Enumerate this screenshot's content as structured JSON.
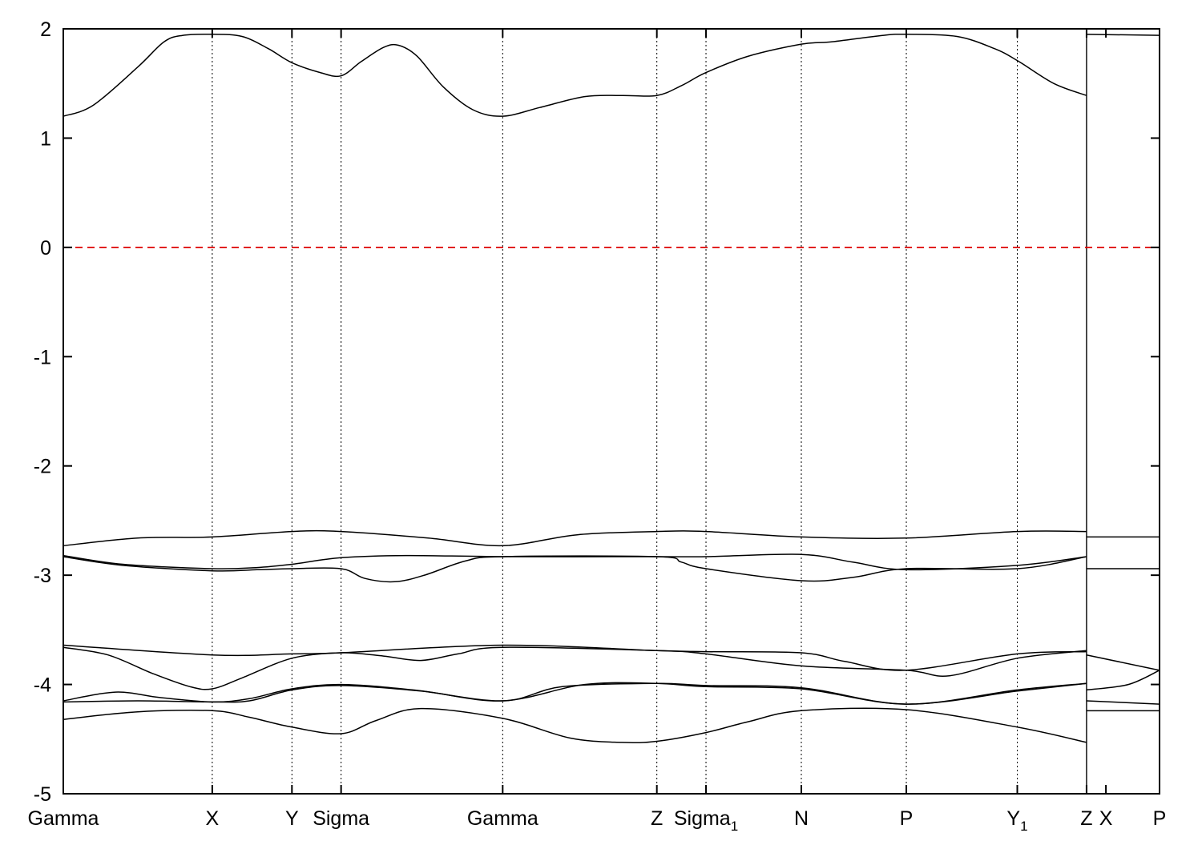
{
  "chart_data": {
    "type": "line",
    "title": "",
    "xlabel": "",
    "ylabel": "",
    "xlim": [
      0,
      14.72
    ],
    "ylim": [
      -5,
      2
    ],
    "yticks": [
      2,
      1,
      0,
      -1,
      -2,
      -3,
      -4,
      -5
    ],
    "ytick_labels": [
      "2",
      "1",
      "0",
      "-1",
      "-2",
      "-3",
      "-4",
      "-5"
    ],
    "kpoints": [
      {
        "x": 0.0,
        "label": "Gamma",
        "sub": ""
      },
      {
        "x": 2.0,
        "label": "X",
        "sub": ""
      },
      {
        "x": 3.07,
        "label": "Y",
        "sub": ""
      },
      {
        "x": 3.73,
        "label": "Sigma",
        "sub": ""
      },
      {
        "x": 5.9,
        "label": "Gamma",
        "sub": ""
      },
      {
        "x": 7.97,
        "label": "Z",
        "sub": ""
      },
      {
        "x": 8.63,
        "label": "Sigma",
        "sub": "1"
      },
      {
        "x": 9.91,
        "label": "N",
        "sub": ""
      },
      {
        "x": 11.32,
        "label": "P",
        "sub": ""
      },
      {
        "x": 12.81,
        "label": "Y",
        "sub": "1"
      },
      {
        "x": 13.74,
        "label": "Z",
        "sub": ""
      },
      {
        "x": 14.72,
        "label": "P",
        "sub": ""
      }
    ],
    "extra_tick_label": {
      "x": 14.0,
      "label": "X"
    },
    "segment_break_x": 13.74,
    "fermi_level": 0,
    "colors": {
      "bands": "#000000",
      "fermi": "#dd0000",
      "grid": "#000000"
    },
    "series": [
      {
        "points": [
          [
            0,
            1.2
          ],
          [
            0.4,
            1.3
          ],
          [
            1.0,
            1.65
          ],
          [
            1.35,
            1.88
          ],
          [
            1.6,
            1.94
          ],
          [
            2.0,
            1.95
          ],
          [
            2.4,
            1.93
          ],
          [
            2.75,
            1.82
          ],
          [
            3.07,
            1.69
          ],
          [
            3.45,
            1.6
          ],
          [
            3.73,
            1.57
          ],
          [
            4.0,
            1.7
          ],
          [
            4.3,
            1.83
          ],
          [
            4.5,
            1.85
          ],
          [
            4.75,
            1.75
          ],
          [
            5.1,
            1.47
          ],
          [
            5.5,
            1.26
          ],
          [
            5.9,
            1.2
          ],
          [
            6.4,
            1.28
          ],
          [
            7.0,
            1.38
          ],
          [
            7.5,
            1.39
          ],
          [
            7.97,
            1.39
          ],
          [
            8.3,
            1.48
          ],
          [
            8.63,
            1.6
          ],
          [
            9.2,
            1.75
          ],
          [
            9.91,
            1.86
          ],
          [
            10.3,
            1.88
          ],
          [
            11.0,
            1.94
          ],
          [
            11.32,
            1.95
          ],
          [
            12.0,
            1.93
          ],
          [
            12.5,
            1.82
          ],
          [
            12.81,
            1.71
          ],
          [
            13.3,
            1.5
          ],
          [
            13.74,
            1.39
          ]
        ]
      },
      {
        "points": [
          [
            13.74,
            1.95
          ],
          [
            14.72,
            1.94
          ]
        ]
      },
      {
        "points": [
          [
            0,
            -2.73
          ],
          [
            1.0,
            -2.66
          ],
          [
            2.0,
            -2.65
          ],
          [
            3.07,
            -2.6
          ],
          [
            3.73,
            -2.6
          ],
          [
            4.9,
            -2.66
          ],
          [
            5.9,
            -2.73
          ],
          [
            6.9,
            -2.63
          ],
          [
            7.97,
            -2.6
          ],
          [
            8.63,
            -2.6
          ],
          [
            9.91,
            -2.65
          ],
          [
            11.32,
            -2.66
          ],
          [
            12.81,
            -2.6
          ],
          [
            13.74,
            -2.6
          ]
        ]
      },
      {
        "points": [
          [
            13.74,
            -2.65
          ],
          [
            14.72,
            -2.65
          ]
        ]
      },
      {
        "points": [
          [
            0,
            -2.82
          ],
          [
            0.8,
            -2.9
          ],
          [
            2.0,
            -2.94
          ],
          [
            2.6,
            -2.93
          ],
          [
            3.07,
            -2.9
          ],
          [
            3.73,
            -2.84
          ],
          [
            4.6,
            -2.82
          ],
          [
            5.9,
            -2.83
          ],
          [
            7.97,
            -2.83
          ],
          [
            8.63,
            -2.83
          ],
          [
            9.91,
            -2.81
          ],
          [
            10.6,
            -2.88
          ],
          [
            11.32,
            -2.95
          ],
          [
            12.81,
            -2.91
          ],
          [
            13.74,
            -2.83
          ]
        ]
      },
      {
        "points": [
          [
            0,
            -2.83
          ],
          [
            0.8,
            -2.91
          ],
          [
            2.0,
            -2.96
          ],
          [
            2.6,
            -2.95
          ],
          [
            3.07,
            -2.94
          ],
          [
            3.73,
            -2.94
          ],
          [
            4.05,
            -3.03
          ],
          [
            4.45,
            -3.06
          ],
          [
            4.85,
            -3.0
          ],
          [
            5.4,
            -2.87
          ],
          [
            5.9,
            -2.83
          ],
          [
            7.97,
            -2.83
          ],
          [
            8.3,
            -2.88
          ],
          [
            8.63,
            -2.94
          ],
          [
            9.91,
            -3.05
          ],
          [
            10.6,
            -3.02
          ],
          [
            11.32,
            -2.94
          ],
          [
            12.81,
            -2.94
          ],
          [
            13.74,
            -2.83
          ]
        ]
      },
      {
        "points": [
          [
            13.74,
            -2.94
          ],
          [
            14.72,
            -2.94
          ]
        ]
      },
      {
        "points": [
          [
            0,
            -3.64
          ],
          [
            2.0,
            -3.73
          ],
          [
            3.07,
            -3.72
          ],
          [
            3.73,
            -3.71
          ],
          [
            5.9,
            -3.64
          ],
          [
            7.97,
            -3.69
          ],
          [
            8.63,
            -3.7
          ],
          [
            9.91,
            -3.71
          ],
          [
            10.5,
            -3.79
          ],
          [
            11.32,
            -3.87
          ],
          [
            12.81,
            -3.72
          ],
          [
            13.74,
            -3.7
          ]
        ]
      },
      {
        "points": [
          [
            0,
            -3.66
          ],
          [
            0.6,
            -3.73
          ],
          [
            1.2,
            -3.9
          ],
          [
            1.7,
            -4.02
          ],
          [
            2.0,
            -4.04
          ],
          [
            2.4,
            -3.94
          ],
          [
            3.07,
            -3.76
          ],
          [
            3.73,
            -3.71
          ],
          [
            4.3,
            -3.74
          ],
          [
            4.8,
            -3.78
          ],
          [
            5.3,
            -3.72
          ],
          [
            5.9,
            -3.66
          ],
          [
            7.97,
            -3.69
          ],
          [
            8.63,
            -3.72
          ],
          [
            9.91,
            -3.83
          ],
          [
            11.32,
            -3.87
          ],
          [
            11.9,
            -3.92
          ],
          [
            12.81,
            -3.76
          ],
          [
            13.74,
            -3.69
          ]
        ]
      },
      {
        "points": [
          [
            13.74,
            -3.73
          ],
          [
            14.72,
            -3.87
          ]
        ]
      },
      {
        "points": [
          [
            13.74,
            -4.05
          ],
          [
            14.3,
            -4.0
          ],
          [
            14.72,
            -3.87
          ]
        ]
      },
      {
        "points": [
          [
            0,
            -4.15
          ],
          [
            0.7,
            -4.07
          ],
          [
            1.3,
            -4.12
          ],
          [
            2.0,
            -4.16
          ],
          [
            2.5,
            -4.13
          ],
          [
            3.07,
            -4.04
          ],
          [
            3.73,
            -4.0
          ],
          [
            4.7,
            -4.05
          ],
          [
            5.9,
            -4.15
          ],
          [
            6.7,
            -4.02
          ],
          [
            7.97,
            -3.99
          ],
          [
            8.63,
            -4.01
          ],
          [
            9.91,
            -4.03
          ],
          [
            11.32,
            -4.18
          ],
          [
            12.81,
            -4.05
          ],
          [
            13.74,
            -3.99
          ]
        ]
      },
      {
        "points": [
          [
            0,
            -4.16
          ],
          [
            1.0,
            -4.15
          ],
          [
            2.0,
            -4.16
          ],
          [
            2.5,
            -4.15
          ],
          [
            3.07,
            -4.05
          ],
          [
            3.73,
            -4.01
          ],
          [
            4.8,
            -4.06
          ],
          [
            5.9,
            -4.15
          ],
          [
            7.0,
            -4.0
          ],
          [
            7.97,
            -3.99
          ],
          [
            8.63,
            -4.02
          ],
          [
            9.91,
            -4.04
          ],
          [
            11.32,
            -4.18
          ],
          [
            12.81,
            -4.06
          ],
          [
            13.74,
            -3.99
          ]
        ]
      },
      {
        "points": [
          [
            13.74,
            -4.15
          ],
          [
            14.72,
            -4.18
          ]
        ]
      },
      {
        "points": [
          [
            0,
            -4.32
          ],
          [
            1.0,
            -4.25
          ],
          [
            2.0,
            -4.24
          ],
          [
            2.5,
            -4.3
          ],
          [
            3.07,
            -4.39
          ],
          [
            3.73,
            -4.45
          ],
          [
            4.2,
            -4.33
          ],
          [
            4.8,
            -4.22
          ],
          [
            5.9,
            -4.31
          ],
          [
            6.8,
            -4.49
          ],
          [
            7.5,
            -4.53
          ],
          [
            7.97,
            -4.52
          ],
          [
            8.63,
            -4.44
          ],
          [
            9.2,
            -4.34
          ],
          [
            9.91,
            -4.24
          ],
          [
            11.32,
            -4.23
          ],
          [
            12.81,
            -4.39
          ],
          [
            13.74,
            -4.53
          ]
        ]
      },
      {
        "points": [
          [
            13.74,
            -4.24
          ],
          [
            14.72,
            -4.24
          ]
        ]
      }
    ]
  }
}
